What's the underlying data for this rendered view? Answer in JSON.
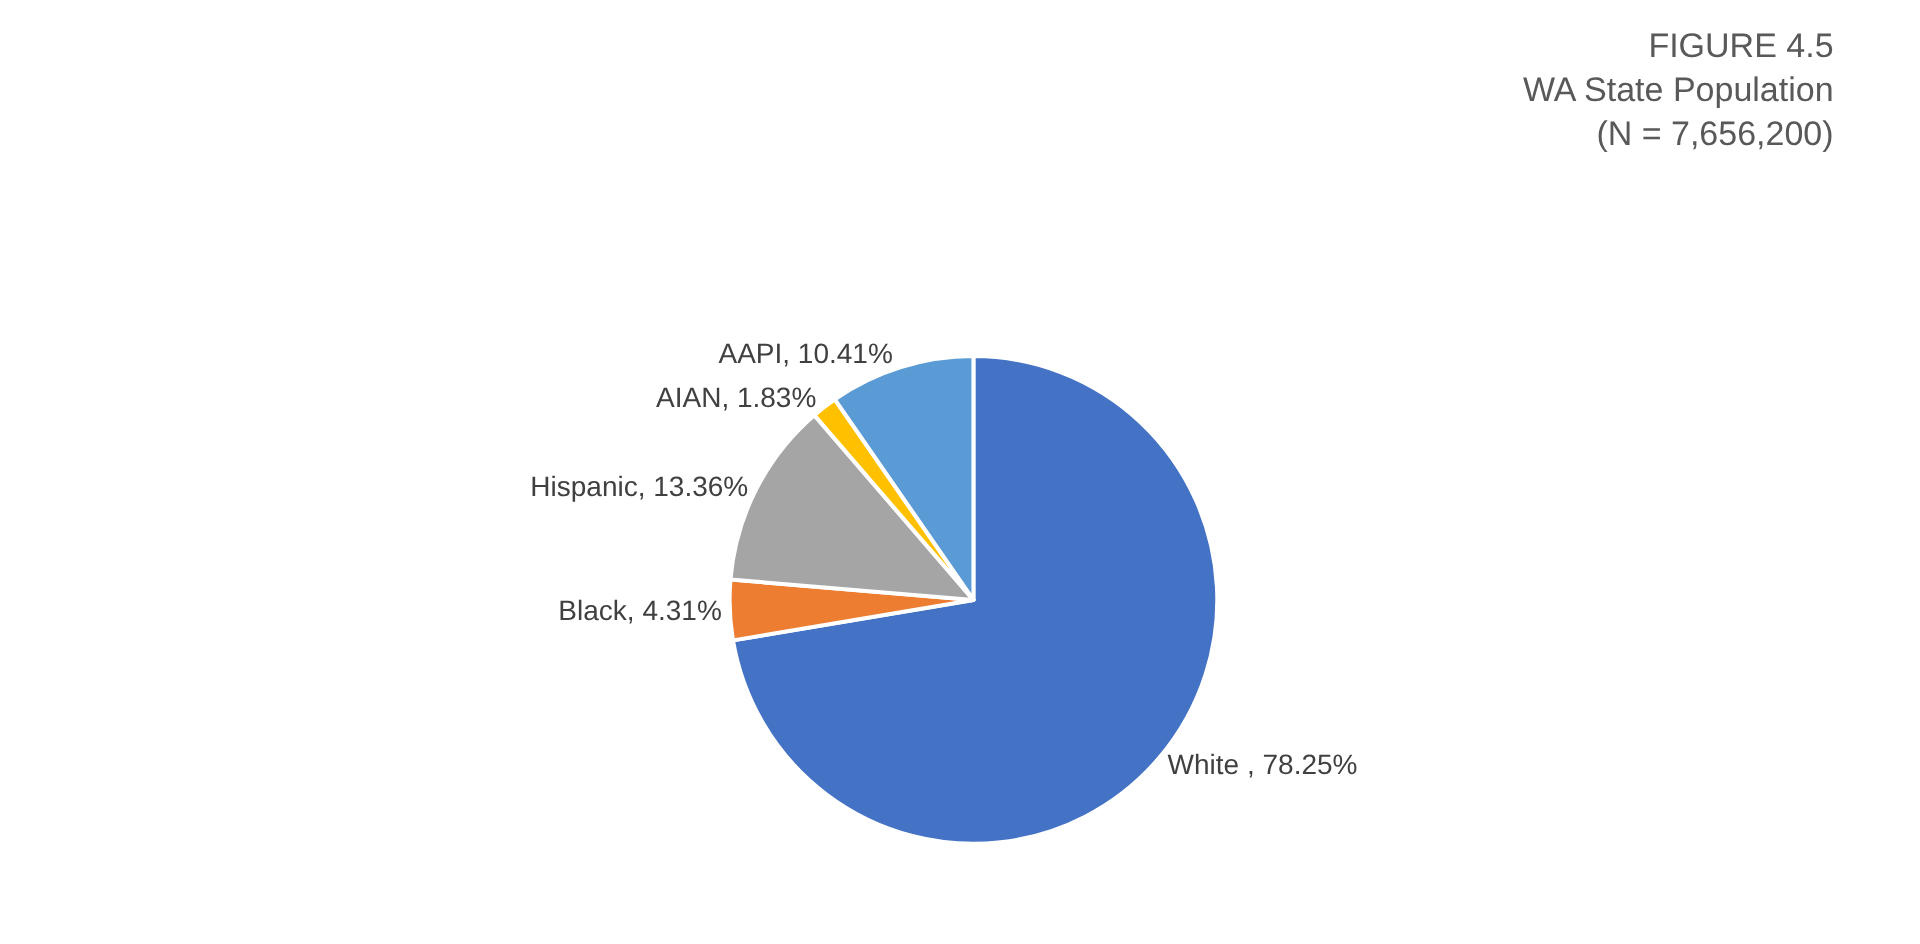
{
  "chart_data": {
    "type": "pie",
    "title": "FIGURE 4.5\nWA State Population\n(N = 7,656,200)",
    "categories": [
      "White , 78.25%",
      "Black, 4.31%",
      "Hispanic, 13.36%",
      "AIAN, 1.83%",
      "AAPI, 10.41%"
    ],
    "values": [
      78.25,
      4.31,
      13.36,
      1.83,
      10.41
    ],
    "colors": [
      "#4472c4",
      "#ed7d31",
      "#a5a5a5",
      "#ffc000",
      "#5b9bd5"
    ],
    "legend": false
  }
}
